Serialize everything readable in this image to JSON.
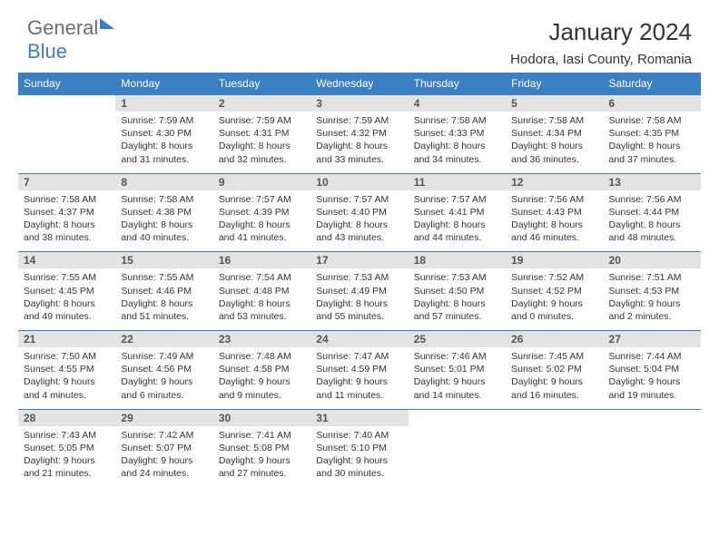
{
  "logo": {
    "part1": "General",
    "part2": "Blue"
  },
  "title": "January 2024",
  "location": "Hodora, Iasi County, Romania",
  "colors": {
    "header_bg": "#3a7fc4",
    "header_text": "#ffffff",
    "daynum_bg": "#e3e3e3",
    "row_border": "#3a7fc4",
    "text": "#333333",
    "logo_gray": "#6d6d6d",
    "logo_blue": "#3a7fc4"
  },
  "weekdays": [
    "Sunday",
    "Monday",
    "Tuesday",
    "Wednesday",
    "Thursday",
    "Friday",
    "Saturday"
  ],
  "weeks": [
    [
      null,
      {
        "n": "1",
        "sr": "Sunrise: 7:59 AM",
        "ss": "Sunset: 4:30 PM",
        "d1": "Daylight: 8 hours",
        "d2": "and 31 minutes."
      },
      {
        "n": "2",
        "sr": "Sunrise: 7:59 AM",
        "ss": "Sunset: 4:31 PM",
        "d1": "Daylight: 8 hours",
        "d2": "and 32 minutes."
      },
      {
        "n": "3",
        "sr": "Sunrise: 7:59 AM",
        "ss": "Sunset: 4:32 PM",
        "d1": "Daylight: 8 hours",
        "d2": "and 33 minutes."
      },
      {
        "n": "4",
        "sr": "Sunrise: 7:58 AM",
        "ss": "Sunset: 4:33 PM",
        "d1": "Daylight: 8 hours",
        "d2": "and 34 minutes."
      },
      {
        "n": "5",
        "sr": "Sunrise: 7:58 AM",
        "ss": "Sunset: 4:34 PM",
        "d1": "Daylight: 8 hours",
        "d2": "and 36 minutes."
      },
      {
        "n": "6",
        "sr": "Sunrise: 7:58 AM",
        "ss": "Sunset: 4:35 PM",
        "d1": "Daylight: 8 hours",
        "d2": "and 37 minutes."
      }
    ],
    [
      {
        "n": "7",
        "sr": "Sunrise: 7:58 AM",
        "ss": "Sunset: 4:37 PM",
        "d1": "Daylight: 8 hours",
        "d2": "and 38 minutes."
      },
      {
        "n": "8",
        "sr": "Sunrise: 7:58 AM",
        "ss": "Sunset: 4:38 PM",
        "d1": "Daylight: 8 hours",
        "d2": "and 40 minutes."
      },
      {
        "n": "9",
        "sr": "Sunrise: 7:57 AM",
        "ss": "Sunset: 4:39 PM",
        "d1": "Daylight: 8 hours",
        "d2": "and 41 minutes."
      },
      {
        "n": "10",
        "sr": "Sunrise: 7:57 AM",
        "ss": "Sunset: 4:40 PM",
        "d1": "Daylight: 8 hours",
        "d2": "and 43 minutes."
      },
      {
        "n": "11",
        "sr": "Sunrise: 7:57 AM",
        "ss": "Sunset: 4:41 PM",
        "d1": "Daylight: 8 hours",
        "d2": "and 44 minutes."
      },
      {
        "n": "12",
        "sr": "Sunrise: 7:56 AM",
        "ss": "Sunset: 4:43 PM",
        "d1": "Daylight: 8 hours",
        "d2": "and 46 minutes."
      },
      {
        "n": "13",
        "sr": "Sunrise: 7:56 AM",
        "ss": "Sunset: 4:44 PM",
        "d1": "Daylight: 8 hours",
        "d2": "and 48 minutes."
      }
    ],
    [
      {
        "n": "14",
        "sr": "Sunrise: 7:55 AM",
        "ss": "Sunset: 4:45 PM",
        "d1": "Daylight: 8 hours",
        "d2": "and 49 minutes."
      },
      {
        "n": "15",
        "sr": "Sunrise: 7:55 AM",
        "ss": "Sunset: 4:46 PM",
        "d1": "Daylight: 8 hours",
        "d2": "and 51 minutes."
      },
      {
        "n": "16",
        "sr": "Sunrise: 7:54 AM",
        "ss": "Sunset: 4:48 PM",
        "d1": "Daylight: 8 hours",
        "d2": "and 53 minutes."
      },
      {
        "n": "17",
        "sr": "Sunrise: 7:53 AM",
        "ss": "Sunset: 4:49 PM",
        "d1": "Daylight: 8 hours",
        "d2": "and 55 minutes."
      },
      {
        "n": "18",
        "sr": "Sunrise: 7:53 AM",
        "ss": "Sunset: 4:50 PM",
        "d1": "Daylight: 8 hours",
        "d2": "and 57 minutes."
      },
      {
        "n": "19",
        "sr": "Sunrise: 7:52 AM",
        "ss": "Sunset: 4:52 PM",
        "d1": "Daylight: 9 hours",
        "d2": "and 0 minutes."
      },
      {
        "n": "20",
        "sr": "Sunrise: 7:51 AM",
        "ss": "Sunset: 4:53 PM",
        "d1": "Daylight: 9 hours",
        "d2": "and 2 minutes."
      }
    ],
    [
      {
        "n": "21",
        "sr": "Sunrise: 7:50 AM",
        "ss": "Sunset: 4:55 PM",
        "d1": "Daylight: 9 hours",
        "d2": "and 4 minutes."
      },
      {
        "n": "22",
        "sr": "Sunrise: 7:49 AM",
        "ss": "Sunset: 4:56 PM",
        "d1": "Daylight: 9 hours",
        "d2": "and 6 minutes."
      },
      {
        "n": "23",
        "sr": "Sunrise: 7:48 AM",
        "ss": "Sunset: 4:58 PM",
        "d1": "Daylight: 9 hours",
        "d2": "and 9 minutes."
      },
      {
        "n": "24",
        "sr": "Sunrise: 7:47 AM",
        "ss": "Sunset: 4:59 PM",
        "d1": "Daylight: 9 hours",
        "d2": "and 11 minutes."
      },
      {
        "n": "25",
        "sr": "Sunrise: 7:46 AM",
        "ss": "Sunset: 5:01 PM",
        "d1": "Daylight: 9 hours",
        "d2": "and 14 minutes."
      },
      {
        "n": "26",
        "sr": "Sunrise: 7:45 AM",
        "ss": "Sunset: 5:02 PM",
        "d1": "Daylight: 9 hours",
        "d2": "and 16 minutes."
      },
      {
        "n": "27",
        "sr": "Sunrise: 7:44 AM",
        "ss": "Sunset: 5:04 PM",
        "d1": "Daylight: 9 hours",
        "d2": "and 19 minutes."
      }
    ],
    [
      {
        "n": "28",
        "sr": "Sunrise: 7:43 AM",
        "ss": "Sunset: 5:05 PM",
        "d1": "Daylight: 9 hours",
        "d2": "and 21 minutes."
      },
      {
        "n": "29",
        "sr": "Sunrise: 7:42 AM",
        "ss": "Sunset: 5:07 PM",
        "d1": "Daylight: 9 hours",
        "d2": "and 24 minutes."
      },
      {
        "n": "30",
        "sr": "Sunrise: 7:41 AM",
        "ss": "Sunset: 5:08 PM",
        "d1": "Daylight: 9 hours",
        "d2": "and 27 minutes."
      },
      {
        "n": "31",
        "sr": "Sunrise: 7:40 AM",
        "ss": "Sunset: 5:10 PM",
        "d1": "Daylight: 9 hours",
        "d2": "and 30 minutes."
      },
      null,
      null,
      null
    ]
  ]
}
